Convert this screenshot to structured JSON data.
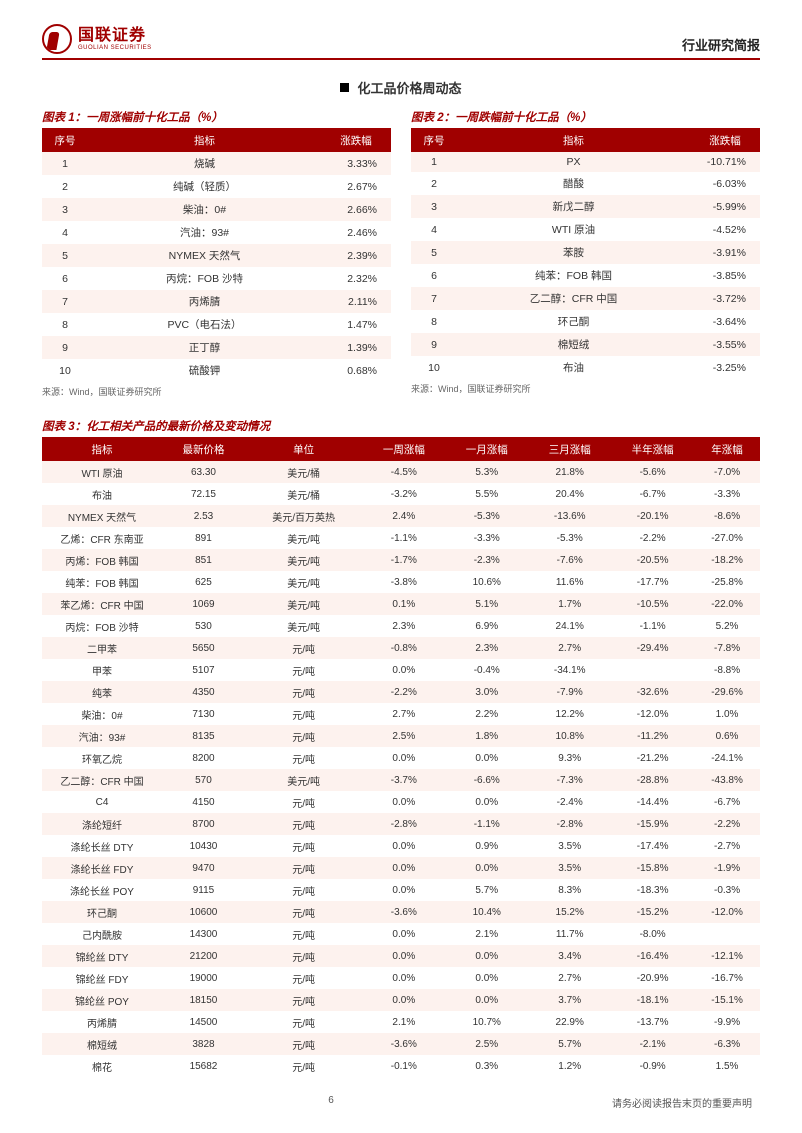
{
  "header": {
    "logo_cn": "国联证券",
    "logo_en": "GUOLIAN SECURITIES",
    "right": "行业研究简报"
  },
  "section_title": "化工品价格周动态",
  "figure1": {
    "title": "图表 1：一周涨幅前十化工品（%）",
    "cols": [
      "序号",
      "指标",
      "涨跌幅"
    ],
    "rows": [
      [
        "1",
        "烧碱",
        "3.33%"
      ],
      [
        "2",
        "纯碱（轻质）",
        "2.67%"
      ],
      [
        "3",
        "柴油：0#",
        "2.66%"
      ],
      [
        "4",
        "汽油：93#",
        "2.46%"
      ],
      [
        "5",
        "NYMEX 天然气",
        "2.39%"
      ],
      [
        "6",
        "丙烷：FOB 沙特",
        "2.32%"
      ],
      [
        "7",
        "丙烯腈",
        "2.11%"
      ],
      [
        "8",
        "PVC（电石法）",
        "1.47%"
      ],
      [
        "9",
        "正丁醇",
        "1.39%"
      ],
      [
        "10",
        "硫酸钾",
        "0.68%"
      ]
    ],
    "source": "来源：Wind，国联证券研究所"
  },
  "figure2": {
    "title": "图表 2：一周跌幅前十化工品（%）",
    "cols": [
      "序号",
      "指标",
      "涨跌幅"
    ],
    "rows": [
      [
        "1",
        "PX",
        "-10.71%"
      ],
      [
        "2",
        "醋酸",
        "-6.03%"
      ],
      [
        "3",
        "新戊二醇",
        "-5.99%"
      ],
      [
        "4",
        "WTI 原油",
        "-4.52%"
      ],
      [
        "5",
        "苯胺",
        "-3.91%"
      ],
      [
        "6",
        "纯苯：FOB 韩国",
        "-3.85%"
      ],
      [
        "7",
        "乙二醇：CFR 中国",
        "-3.72%"
      ],
      [
        "8",
        "环己酮",
        "-3.64%"
      ],
      [
        "9",
        "棉短绒",
        "-3.55%"
      ],
      [
        "10",
        "布油",
        "-3.25%"
      ]
    ],
    "source": "来源：Wind，国联证券研究所"
  },
  "figure3": {
    "title": "图表 3：化工相关产品的最新价格及变动情况",
    "cols": [
      "指标",
      "最新价格",
      "单位",
      "一周涨幅",
      "一月涨幅",
      "三月涨幅",
      "半年涨幅",
      "年涨幅"
    ],
    "rows": [
      [
        "WTI 原油",
        "63.30",
        "美元/桶",
        "-4.5%",
        "5.3%",
        "21.8%",
        "-5.6%",
        "-7.0%"
      ],
      [
        "布油",
        "72.15",
        "美元/桶",
        "-3.2%",
        "5.5%",
        "20.4%",
        "-6.7%",
        "-3.3%"
      ],
      [
        "NYMEX 天然气",
        "2.53",
        "美元/百万英热",
        "2.4%",
        "-5.3%",
        "-13.6%",
        "-20.1%",
        "-8.6%"
      ],
      [
        "乙烯：CFR 东南亚",
        "891",
        "美元/吨",
        "-1.1%",
        "-3.3%",
        "-5.3%",
        "-2.2%",
        "-27.0%"
      ],
      [
        "丙烯：FOB 韩国",
        "851",
        "美元/吨",
        "-1.7%",
        "-2.3%",
        "-7.6%",
        "-20.5%",
        "-18.2%"
      ],
      [
        "纯苯：FOB 韩国",
        "625",
        "美元/吨",
        "-3.8%",
        "10.6%",
        "11.6%",
        "-17.7%",
        "-25.8%"
      ],
      [
        "苯乙烯：CFR 中国",
        "1069",
        "美元/吨",
        "0.1%",
        "5.1%",
        "1.7%",
        "-10.5%",
        "-22.0%"
      ],
      [
        "丙烷：FOB 沙特",
        "530",
        "美元/吨",
        "2.3%",
        "6.9%",
        "24.1%",
        "-1.1%",
        "5.2%"
      ],
      [
        "二甲苯",
        "5650",
        "元/吨",
        "-0.8%",
        "2.3%",
        "2.7%",
        "-29.4%",
        "-7.8%"
      ],
      [
        "甲苯",
        "5107",
        "元/吨",
        "0.0%",
        "-0.4%",
        "-34.1%",
        "",
        "-8.8%"
      ],
      [
        "纯苯",
        "4350",
        "元/吨",
        "-2.2%",
        "3.0%",
        "-7.9%",
        "-32.6%",
        "-29.6%"
      ],
      [
        "柴油：0#",
        "7130",
        "元/吨",
        "2.7%",
        "2.2%",
        "12.2%",
        "-12.0%",
        "1.0%"
      ],
      [
        "汽油：93#",
        "8135",
        "元/吨",
        "2.5%",
        "1.8%",
        "10.8%",
        "-11.2%",
        "0.6%"
      ],
      [
        "环氧乙烷",
        "8200",
        "元/吨",
        "0.0%",
        "0.0%",
        "9.3%",
        "-21.2%",
        "-24.1%"
      ],
      [
        "乙二醇：CFR 中国",
        "570",
        "美元/吨",
        "-3.7%",
        "-6.6%",
        "-7.3%",
        "-28.8%",
        "-43.8%"
      ],
      [
        "C4",
        "4150",
        "元/吨",
        "0.0%",
        "0.0%",
        "-2.4%",
        "-14.4%",
        "-6.7%"
      ],
      [
        "涤纶短纤",
        "8700",
        "元/吨",
        "-2.8%",
        "-1.1%",
        "-2.8%",
        "-15.9%",
        "-2.2%"
      ],
      [
        "涤纶长丝 DTY",
        "10430",
        "元/吨",
        "0.0%",
        "0.9%",
        "3.5%",
        "-17.4%",
        "-2.7%"
      ],
      [
        "涤纶长丝 FDY",
        "9470",
        "元/吨",
        "0.0%",
        "0.0%",
        "3.5%",
        "-15.8%",
        "-1.9%"
      ],
      [
        "涤纶长丝 POY",
        "9115",
        "元/吨",
        "0.0%",
        "5.7%",
        "8.3%",
        "-18.3%",
        "-0.3%"
      ],
      [
        "环己酮",
        "10600",
        "元/吨",
        "-3.6%",
        "10.4%",
        "15.2%",
        "-15.2%",
        "-12.0%"
      ],
      [
        "己内酰胺",
        "14300",
        "元/吨",
        "0.0%",
        "2.1%",
        "11.7%",
        "-8.0%",
        ""
      ],
      [
        "锦纶丝 DTY",
        "21200",
        "元/吨",
        "0.0%",
        "0.0%",
        "3.4%",
        "-16.4%",
        "-12.1%"
      ],
      [
        "锦纶丝 FDY",
        "19000",
        "元/吨",
        "0.0%",
        "0.0%",
        "2.7%",
        "-20.9%",
        "-16.7%"
      ],
      [
        "锦纶丝 POY",
        "18150",
        "元/吨",
        "0.0%",
        "0.0%",
        "3.7%",
        "-18.1%",
        "-15.1%"
      ],
      [
        "丙烯腈",
        "14500",
        "元/吨",
        "2.1%",
        "10.7%",
        "22.9%",
        "-13.7%",
        "-9.9%"
      ],
      [
        "棉短绒",
        "3828",
        "元/吨",
        "-3.6%",
        "2.5%",
        "5.7%",
        "-2.1%",
        "-6.3%"
      ],
      [
        "棉花",
        "15682",
        "元/吨",
        "-0.1%",
        "0.3%",
        "1.2%",
        "-0.9%",
        "1.5%"
      ]
    ]
  },
  "footer": {
    "page": "6",
    "disclaimer": "请务必阅读报告末页的重要声明"
  },
  "colors": {
    "brand": "#a00000",
    "row_odd": "#fdf2ee",
    "row_even": "#ffffff"
  }
}
